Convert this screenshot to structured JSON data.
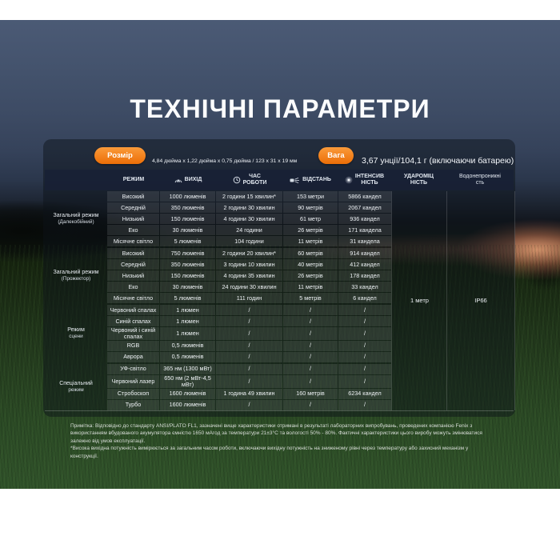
{
  "page": {
    "title": "ТЕХНІЧНІ ПАРАМЕТРИ"
  },
  "colors": {
    "accent_orange": "#f07d17",
    "header_bar": "#182135",
    "panel_overlay": "rgba(12,18,26,0.48)"
  },
  "icons": {
    "output": "brightness-rays-icon",
    "runtime": "clock-icon",
    "distance": "flashlight-beam-icon",
    "intensity": "glow-dot-icon"
  },
  "badges": {
    "size": {
      "label": "Розмір",
      "value": "4,84 дюйма x 1,22 дюйма x 0,75 дюйма / 123 x 31 x 19 мм"
    },
    "weight": {
      "label": "Вага",
      "value": "3,67 унції/104,1 г (включаючи батарею)"
    }
  },
  "table": {
    "headers": {
      "mode": "РЕЖИМ",
      "output": "ВИХІД",
      "runtime": "ЧАС\nРОБОТИ",
      "distance": "ВІДСТАНЬ",
      "intensity": "ІНТЕНСИВ\nНІСТЬ",
      "impact": "УДАРОМІЦ\nНІСТЬ",
      "waterproof": "Водонепроникні\nсть"
    },
    "impact_value": "1 метр",
    "waterproof_value": "IP66",
    "groups": [
      {
        "label": "Загальний режим",
        "sublabel": "(Далекобійний)",
        "rows": [
          {
            "mode": "Високий",
            "output": "1000 люменів",
            "runtime": "2 години 15 хвилин*",
            "distance": "153 метри",
            "intensity": "5866 кандел"
          },
          {
            "mode": "Середній",
            "output": "350 люменів",
            "runtime": "2 години 30 хвилин",
            "distance": "90 метрів",
            "intensity": "2067 кандел"
          },
          {
            "mode": "Низький",
            "output": "150 люменів",
            "runtime": "4 години 30 хвилин",
            "distance": "61 метр",
            "intensity": "936 кандел"
          },
          {
            "mode": "Еко",
            "output": "30 люменів",
            "runtime": "24 години",
            "distance": "26 метрів",
            "intensity": "171 кандела"
          },
          {
            "mode": "Місячне світло",
            "output": "5 люменів",
            "runtime": "104 години",
            "distance": "11 метрів",
            "intensity": "31 кандела"
          }
        ]
      },
      {
        "label": "Загальний режим",
        "sublabel": "(Прожектор)",
        "rows": [
          {
            "mode": "Високий",
            "output": "750 люменів",
            "runtime": "2 години 20 хвилин*",
            "distance": "60 метрів",
            "intensity": "914 кандел"
          },
          {
            "mode": "Середній",
            "output": "350 люменів",
            "runtime": "3 години 10 хвилин",
            "distance": "40 метрів",
            "intensity": "412 кандел"
          },
          {
            "mode": "Низький",
            "output": "150 люменів",
            "runtime": "4 години 35 хвилин",
            "distance": "26 метрів",
            "intensity": "178 кандел"
          },
          {
            "mode": "Еко",
            "output": "30 люменів",
            "runtime": "24 години 30 хвилин",
            "distance": "11 метрів",
            "intensity": "33 кандел"
          },
          {
            "mode": "Місячне світло",
            "output": "5 люменів",
            "runtime": "111 годин",
            "distance": "5 метрів",
            "intensity": "6 кандел"
          }
        ]
      },
      {
        "label": "Режим",
        "sublabel": "сцени",
        "rows": [
          {
            "mode": "Червоний спалах",
            "output": "1 люмен",
            "runtime": "/",
            "distance": "/",
            "intensity": "/"
          },
          {
            "mode": "Синій спалах",
            "output": "1 люмен",
            "runtime": "/",
            "distance": "/",
            "intensity": "/"
          },
          {
            "mode": "Червоний і синій спалах",
            "output": "1 люмен",
            "runtime": "/",
            "distance": "/",
            "intensity": "/"
          },
          {
            "mode": "RGB",
            "output": "0,5 люменів",
            "runtime": "/",
            "distance": "/",
            "intensity": "/"
          },
          {
            "mode": "Аврора",
            "output": "0,5 люменів",
            "runtime": "/",
            "distance": "/",
            "intensity": "/"
          }
        ]
      },
      {
        "label": "Спеціальний",
        "sublabel": "режим",
        "rows": [
          {
            "mode": "УФ-світло",
            "output": "365 нм (1300 мВт)",
            "runtime": "/",
            "distance": "/",
            "intensity": "/"
          },
          {
            "mode": "Червоний лазер",
            "output": "650 нм (2 мВт-4,5 мВт)",
            "runtime": "/",
            "distance": "/",
            "intensity": "/"
          },
          {
            "mode": "Стробоскоп",
            "output": "1600 люменів",
            "runtime": "1 година 49 хвилин",
            "distance": "160 метрів",
            "intensity": "6234 кандел"
          },
          {
            "mode": "Турбо",
            "output": "1600 люменів",
            "runtime": "/",
            "distance": "/",
            "intensity": "/"
          }
        ]
      }
    ]
  },
  "footnote": {
    "line1": "Примітка: Відповідно до стандарту ANSI/PLATO FL1, зазначені вище характеристики отримані в результаті лабораторних випробувань, проведених компанією Fenix з використанням вбудованого акумулятора ємністю 1650 мАгод за температури 21±3°C та вологості 50% - 80%. Фактичні характеристики цього виробу можуть змінюватися залежно від умов експлуатації.",
    "line2": "*Висока вихідна потужність вимірюється за загальним часом роботи, включаючи вихідну потужність на зниженому рівні через температуру або захисний механізм у конструкції."
  }
}
